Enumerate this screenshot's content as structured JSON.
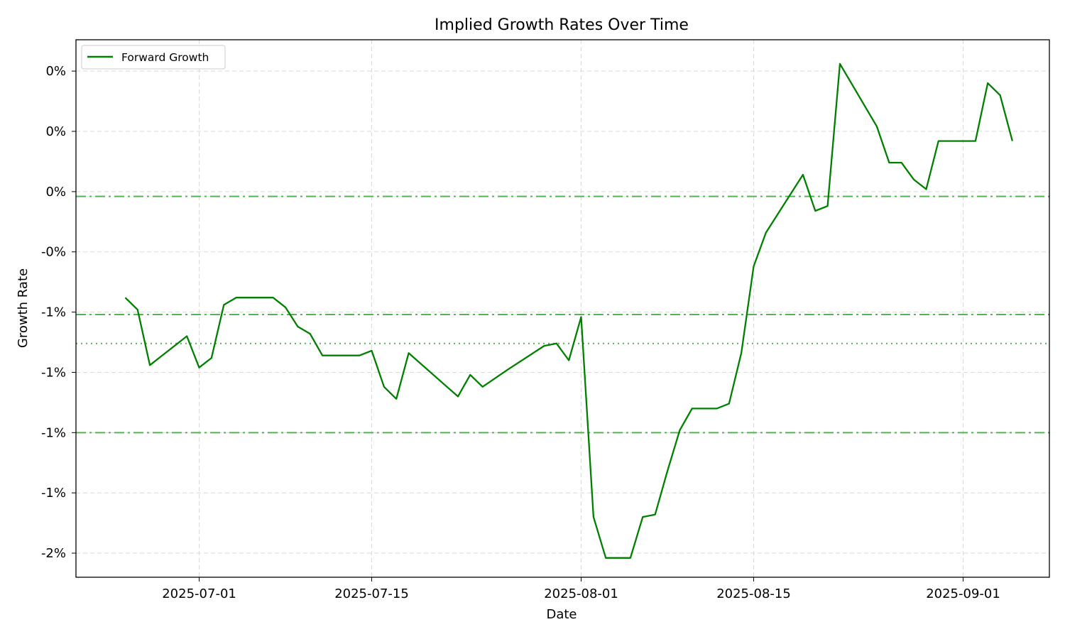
{
  "chart_data": {
    "type": "line",
    "title": "Implied Growth Rates Over Time",
    "xlabel": "Date",
    "ylabel": "Growth Rate",
    "x_ticks": [
      "2025-07-01",
      "2025-07-15",
      "2025-08-01",
      "2025-08-15",
      "2025-09-01"
    ],
    "y_ticks": [
      {
        "value": -0.016,
        "label": "-2%"
      },
      {
        "value": -0.0135,
        "label": "-1%"
      },
      {
        "value": -0.011,
        "label": "-1%"
      },
      {
        "value": -0.0085,
        "label": "-1%"
      },
      {
        "value": -0.006,
        "label": "-1%"
      },
      {
        "value": -0.0035,
        "label": "-0%"
      },
      {
        "value": -0.001,
        "label": "0%"
      },
      {
        "value": 0.0015,
        "label": "0%"
      },
      {
        "value": 0.004,
        "label": "0%"
      }
    ],
    "xlim": [
      "2025-06-21",
      "2025-09-08"
    ],
    "ylim": [
      -0.017,
      0.0053
    ],
    "grid": true,
    "legend_position": "top-left",
    "series": [
      {
        "name": "Forward Growth",
        "color": "#008000",
        "x": [
          "2025-06-25",
          "2025-06-26",
          "2025-06-27",
          "2025-06-30",
          "2025-07-01",
          "2025-07-02",
          "2025-07-03",
          "2025-07-04",
          "2025-07-07",
          "2025-07-08",
          "2025-07-09",
          "2025-07-10",
          "2025-07-11",
          "2025-07-12",
          "2025-07-14",
          "2025-07-15",
          "2025-07-16",
          "2025-07-17",
          "2025-07-18",
          "2025-07-22",
          "2025-07-23",
          "2025-07-24",
          "2025-07-26",
          "2025-07-29",
          "2025-07-30",
          "2025-07-31",
          "2025-08-01",
          "2025-08-02",
          "2025-08-03",
          "2025-08-05",
          "2025-08-06",
          "2025-08-07",
          "2025-08-08",
          "2025-08-09",
          "2025-08-10",
          "2025-08-11",
          "2025-08-12",
          "2025-08-13",
          "2025-08-14",
          "2025-08-15",
          "2025-08-16",
          "2025-08-19",
          "2025-08-20",
          "2025-08-21",
          "2025-08-22",
          "2025-08-25",
          "2025-08-26",
          "2025-08-27",
          "2025-08-28",
          "2025-08-29",
          "2025-08-30",
          "2025-08-31",
          "2025-09-01",
          "2025-09-02",
          "2025-09-03",
          "2025-09-04",
          "2025-09-05"
        ],
        "values": [
          -0.0054,
          -0.0059,
          -0.0082,
          -0.007,
          -0.0083,
          -0.0079,
          -0.0057,
          -0.0054,
          -0.0054,
          -0.0058,
          -0.0066,
          -0.0069,
          -0.0078,
          -0.0078,
          -0.0078,
          -0.0076,
          -0.0091,
          -0.0096,
          -0.0077,
          -0.0095,
          -0.0086,
          -0.0091,
          -0.0084,
          -0.0074,
          -0.0073,
          -0.008,
          -0.0062,
          -0.0145,
          -0.0162,
          -0.0162,
          -0.0145,
          -0.0144,
          -0.0126,
          -0.0109,
          -0.01,
          -0.01,
          -0.01,
          -0.0098,
          -0.0077,
          -0.0041,
          -0.0027,
          -0.0003,
          -0.0018,
          -0.0016,
          0.0043,
          0.0017,
          0.0002,
          0.0002,
          -0.0005,
          -0.0009,
          0.0011,
          0.0011,
          0.0011,
          0.0011,
          0.0035,
          0.003,
          0.0011
        ]
      }
    ],
    "reference_lines": [
      {
        "y": -0.0012,
        "style": "dashdot",
        "color": "#4daf4a"
      },
      {
        "y": -0.0061,
        "style": "dashdot",
        "color": "#4daf4a"
      },
      {
        "y": -0.0073,
        "style": "dotted",
        "color": "#4daf4a"
      },
      {
        "y": -0.011,
        "style": "dashdot",
        "color": "#4daf4a"
      }
    ]
  }
}
